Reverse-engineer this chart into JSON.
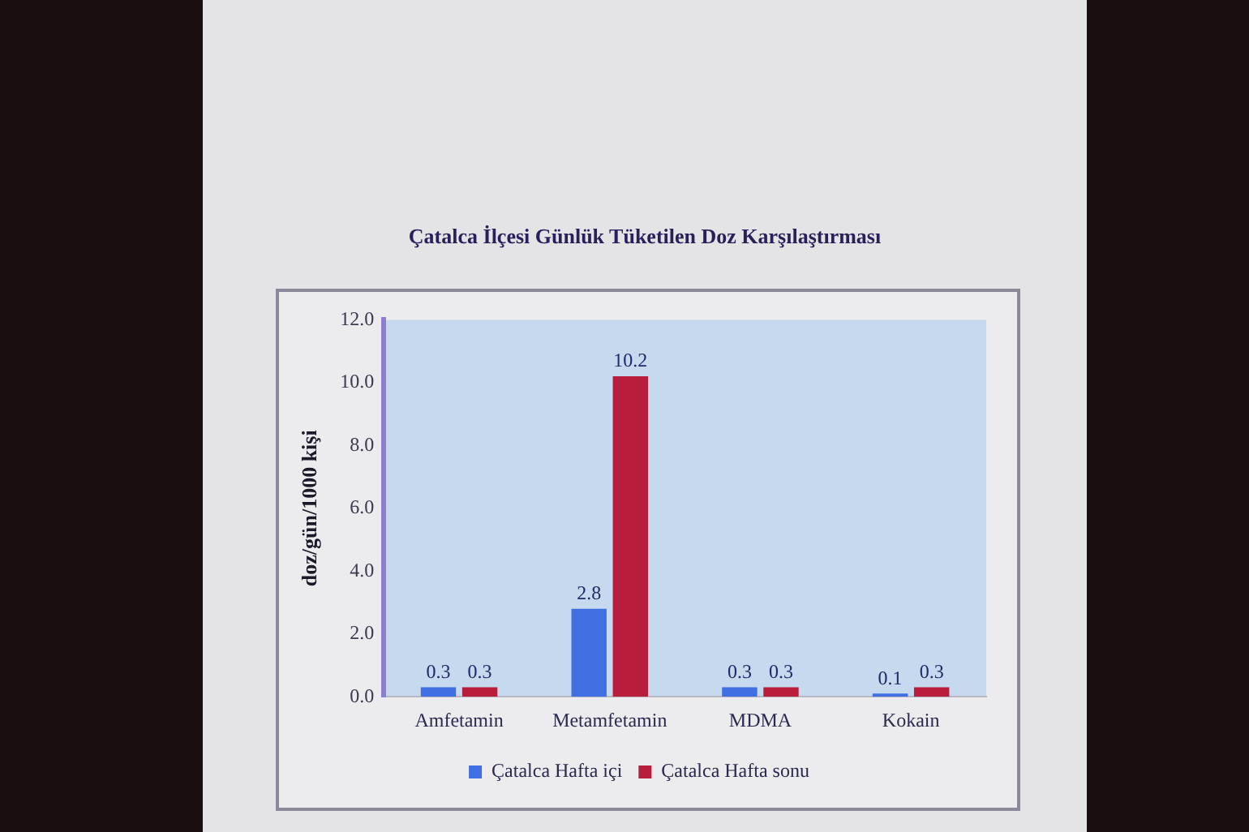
{
  "chart_data": {
    "type": "bar",
    "title": "Çatalca İlçesi Günlük Tüketilen Doz Karşılaştırması",
    "ylabel": "doz/gün/1000 kişi",
    "categories": [
      "Amfetamin",
      "Metamfetamin",
      "MDMA",
      "Kokain"
    ],
    "series": [
      {
        "name": "Çatalca Hafta içi",
        "color": "#3f6fe0",
        "values": [
          0.3,
          2.8,
          0.3,
          0.1
        ]
      },
      {
        "name": "Çatalca Hafta sonu",
        "color": "#b81e3c",
        "values": [
          0.3,
          10.2,
          0.3,
          0.3
        ]
      }
    ],
    "ylim": [
      0,
      12
    ],
    "yticks": [
      {
        "value": 0,
        "label": "0.0"
      },
      {
        "value": 2,
        "label": "2.0"
      },
      {
        "value": 4,
        "label": "4.0"
      },
      {
        "value": 6,
        "label": "6.0"
      },
      {
        "value": 8,
        "label": "8.0"
      },
      {
        "value": 10,
        "label": "10.0"
      },
      {
        "value": 12,
        "label": "12.0"
      }
    ],
    "data_labels": true,
    "legend": "bottom"
  }
}
